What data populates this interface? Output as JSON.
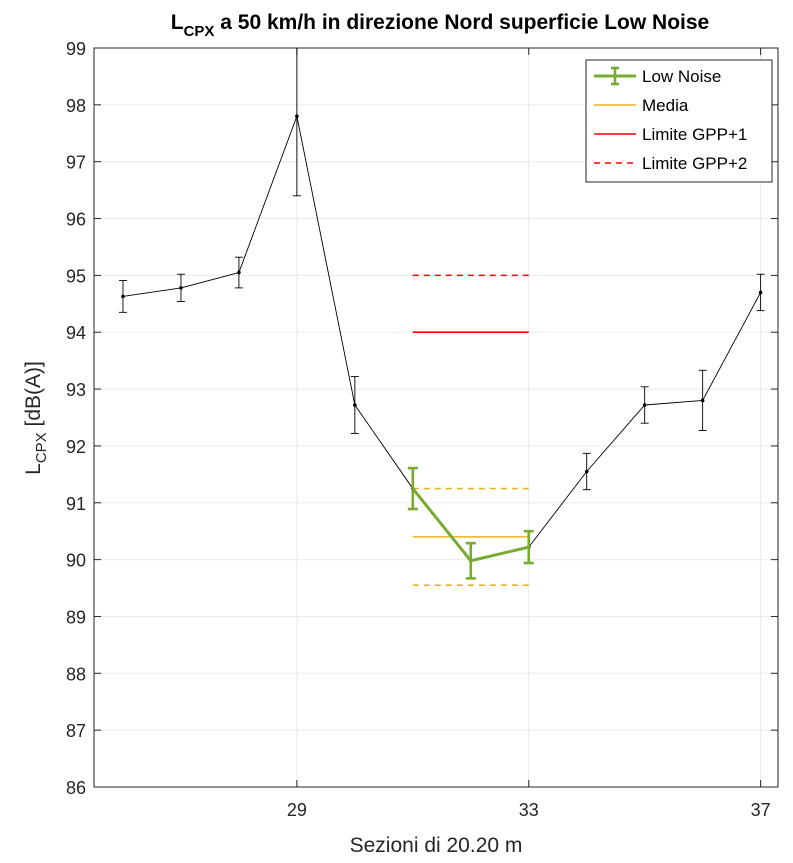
{
  "chart_data": {
    "type": "line",
    "title_main": "L",
    "title_sub": "CPX",
    "title_rest": " a 50 km/h in direzione Nord superficie Low Noise",
    "xlabel": "Sezioni di 20.20 m",
    "ylabel_main": "L",
    "ylabel_sub": "CPX",
    "ylabel_rest": " [dB(A)]",
    "xlim": [
      25.5,
      37.3
    ],
    "ylim": [
      86,
      99
    ],
    "xticks": [
      29,
      33,
      37
    ],
    "yticks": [
      86,
      87,
      88,
      89,
      90,
      91,
      92,
      93,
      94,
      95,
      96,
      97,
      98,
      99
    ],
    "grid": true,
    "legend_position": "top-right",
    "series": [
      {
        "role": "all-sections",
        "color": "#000000",
        "x": [
          26,
          27,
          28,
          29,
          30,
          31,
          32,
          33,
          34,
          35,
          36,
          37
        ],
        "y": [
          94.63,
          94.78,
          95.05,
          97.8,
          92.72,
          91.25,
          89.98,
          90.22,
          91.55,
          92.72,
          92.8,
          94.7
        ],
        "err": [
          0.28,
          0.24,
          0.27,
          1.4,
          0.5,
          0.36,
          0.31,
          0.28,
          0.32,
          0.32,
          0.53,
          0.32
        ]
      },
      {
        "name": "Low Noise",
        "role": "highlight",
        "color": "#77ac30",
        "x": [
          31,
          32,
          33
        ],
        "y": [
          91.25,
          89.98,
          90.22
        ],
        "err": [
          0.36,
          0.31,
          0.28
        ]
      }
    ],
    "reference_lines": [
      {
        "name": "Media",
        "color": "#edb120",
        "style": "solid",
        "x": [
          31,
          33
        ],
        "y": 90.4
      },
      {
        "name": "",
        "color": "#edb120",
        "style": "dashed",
        "x": [
          31,
          33
        ],
        "y": 91.25
      },
      {
        "name": "",
        "color": "#edb120",
        "style": "dashed",
        "x": [
          31,
          33
        ],
        "y": 89.55
      },
      {
        "name": "Limite GPP+1",
        "color": "#ff0000",
        "style": "solid",
        "x": [
          31,
          33
        ],
        "y": 94.0
      },
      {
        "name": "Limite GPP+2",
        "color": "#ff0000",
        "style": "dashed",
        "x": [
          31,
          33
        ],
        "y": 95.0
      }
    ],
    "legend": [
      {
        "label": "Low Noise",
        "color": "#77ac30",
        "style": "errorbar"
      },
      {
        "label": "Media",
        "color": "#edb120",
        "style": "solid"
      },
      {
        "label": "Limite GPP+1",
        "color": "#ff0000",
        "style": "solid"
      },
      {
        "label": "Limite GPP+2",
        "color": "#ff0000",
        "style": "dashed"
      }
    ]
  }
}
